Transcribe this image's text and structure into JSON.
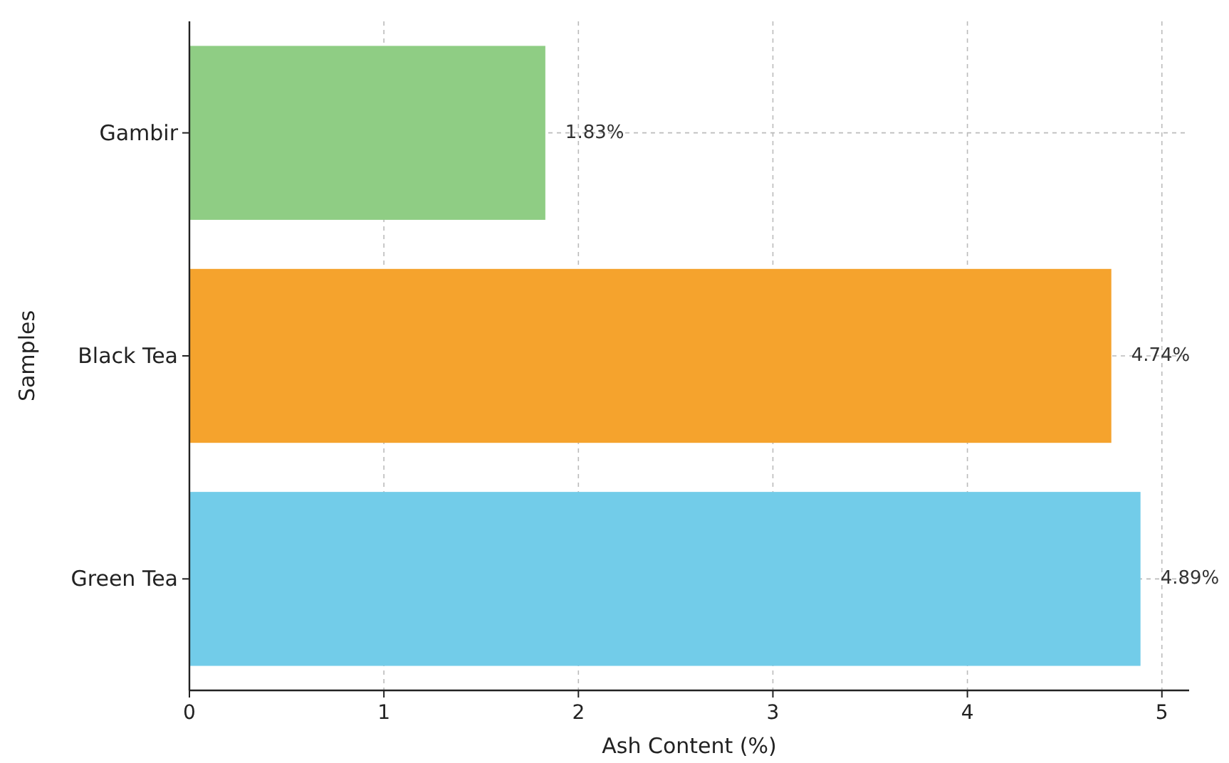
{
  "chart_data": {
    "type": "bar",
    "orientation": "horizontal",
    "categories": [
      "Gambir",
      "Black Tea",
      "Green Tea"
    ],
    "values": [
      1.83,
      4.74,
      4.89
    ],
    "colors": [
      "#8fcd84",
      "#f5a32d",
      "#72cce9"
    ],
    "value_labels": [
      "1.83%",
      "4.74%",
      "4.89%"
    ],
    "xlabel": "Ash Content (%)",
    "ylabel": "Samples",
    "xlim": [
      0,
      5.14
    ],
    "xticks": [
      0,
      1,
      2,
      3,
      4,
      5
    ],
    "grid": true
  }
}
